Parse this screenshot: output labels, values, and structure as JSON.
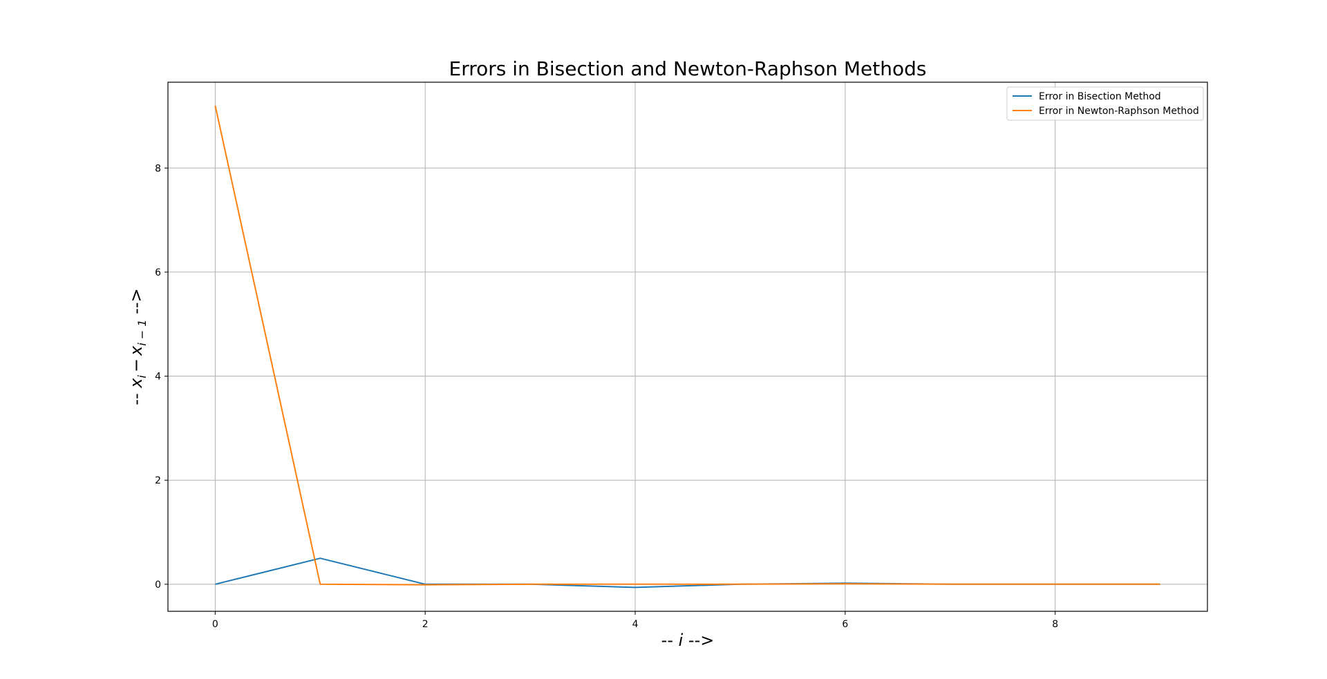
{
  "chart_data": {
    "type": "line",
    "title": "Errors in Bisection and Newton-Raphson Methods",
    "xlabel": {
      "prefix": "-- ",
      "var": "i",
      "suffix": " -->"
    },
    "ylabel": {
      "prefix": "-- ",
      "expr_a": "x",
      "sub_a": "i",
      "minus": "−",
      "expr_b": "x",
      "sub_b": "i − 1",
      "suffix": " -->"
    },
    "xlim": [
      -0.45,
      9.45
    ],
    "ylim": [
      -0.52,
      9.65
    ],
    "xticks": [
      0,
      2,
      4,
      6,
      8
    ],
    "yticks": [
      0,
      2,
      4,
      6,
      8
    ],
    "grid": true,
    "legend_position": "top-right",
    "x": [
      0,
      1,
      2,
      3,
      4,
      5,
      6,
      7,
      8,
      9
    ],
    "series": [
      {
        "name": "Error in Bisection Method",
        "color": "#1f77b4",
        "values": [
          0,
          0.5,
          0.0,
          0.0,
          -0.06,
          0.0,
          0.02,
          0.0,
          0.0,
          0.0
        ]
      },
      {
        "name": "Error in Newton-Raphson Method",
        "color": "#ff7f0e",
        "values": [
          9.2,
          0.0,
          -0.01,
          0.0,
          0.0,
          0.0,
          0.01,
          0.0,
          0.0,
          0.0
        ]
      }
    ]
  }
}
